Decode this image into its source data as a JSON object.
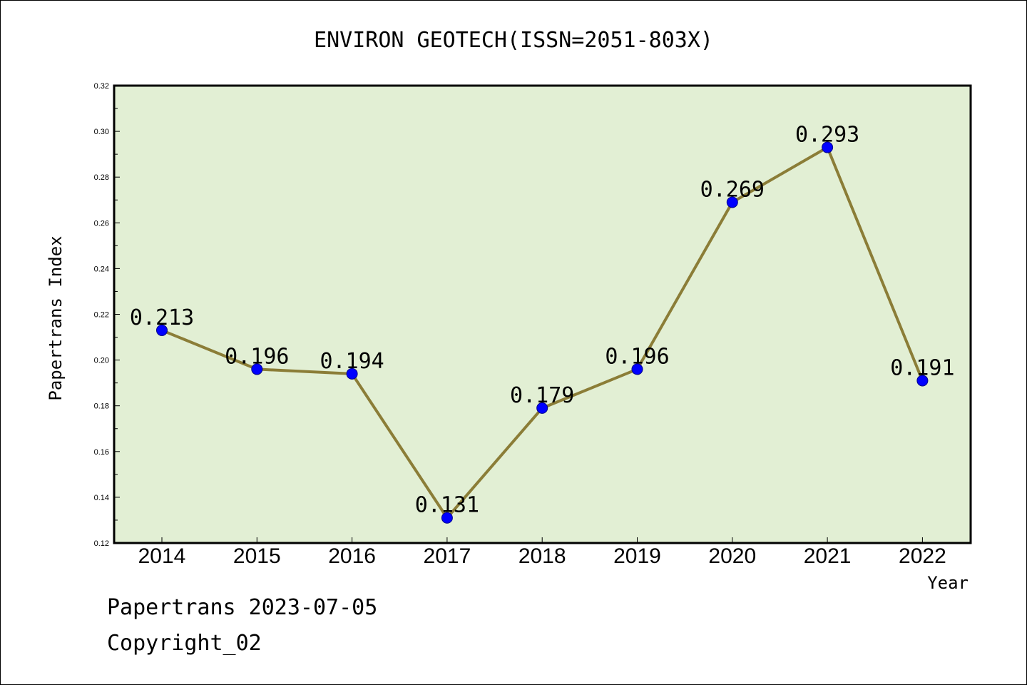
{
  "chart_data": {
    "type": "line",
    "title": "ENVIRON GEOTECH(ISSN=2051-803X)",
    "xlabel": "Year",
    "ylabel": "Papertrans Index",
    "categories": [
      "2014",
      "2015",
      "2016",
      "2017",
      "2018",
      "2019",
      "2020",
      "2021",
      "2022"
    ],
    "series": [
      {
        "values": [
          0.213,
          0.196,
          0.194,
          0.131,
          0.179,
          0.196,
          0.269,
          0.293,
          0.191
        ],
        "labels": [
          "0.213",
          "0.196",
          "0.194",
          "0.131",
          "0.179",
          "0.196",
          "0.269",
          "0.293",
          "0.191"
        ]
      }
    ],
    "ylim": [
      0.12,
      0.32
    ],
    "yticks": [
      "0.12",
      "0.14",
      "0.16",
      "0.18",
      "0.20",
      "0.22",
      "0.24",
      "0.26",
      "0.28",
      "0.30",
      "0.32"
    ],
    "colors": {
      "plot_bg": "#e2efd4",
      "line": "#8b7d37",
      "marker": "#0000ff"
    }
  },
  "footer": {
    "line1": "Papertrans 2023-07-05",
    "line2": "Copyright_02"
  }
}
